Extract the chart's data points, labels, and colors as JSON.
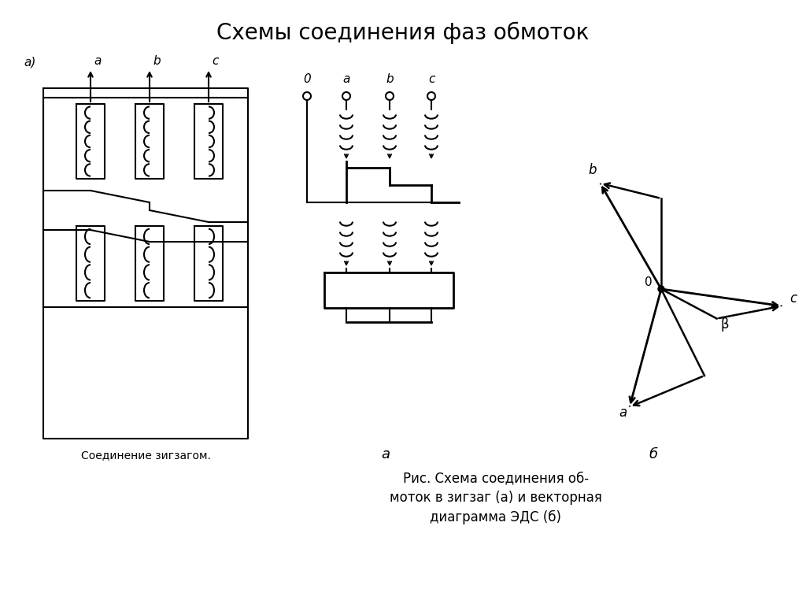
{
  "title": "Схемы соединения фаз обмоток",
  "title_fontsize": 20,
  "caption_line1": "Рис. Схема соединения об-",
  "caption_line2": "моток в зигзаг (а) и векторная",
  "caption_line3": "диаграмма ЭДС (б)",
  "left_caption": "Соединение зигзагом.",
  "left_label": "а)",
  "sub_a": "а",
  "sub_b": "б"
}
